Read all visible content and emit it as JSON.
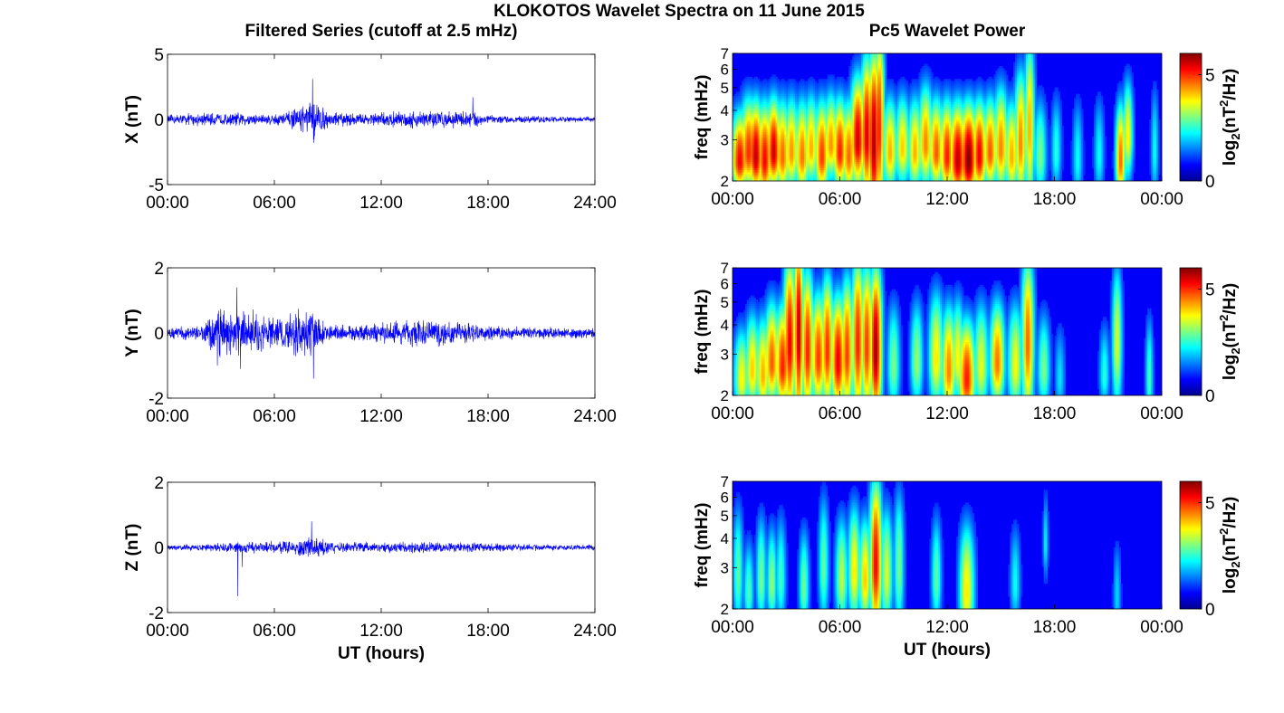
{
  "figure": {
    "title": "KLOKOTOS Wavelet Spectra on 11 June 2015",
    "left_column_title": "Filtered Series (cutoff at 2.5 mHz)",
    "right_column_title": "Pc5 Wavelet Power",
    "bottom_xlabel": "UT (hours)"
  },
  "chart_data": [
    {
      "type": "line",
      "panel": "X",
      "ylabel": "X (nT)",
      "xlabel": "",
      "xlim": [
        0,
        24
      ],
      "ylim": [
        -5,
        5
      ],
      "yticks": [
        -5,
        0,
        5
      ],
      "ytick_labels": [
        "-5",
        "0",
        "5"
      ],
      "xticks": [
        0,
        6,
        12,
        18,
        24
      ],
      "xtick_labels": [
        "00:00",
        "06:00",
        "12:00",
        "18:00",
        "24:00"
      ],
      "color": "#0000ff",
      "envelope": {
        "x": [
          0,
          1,
          2,
          3,
          4,
          5,
          6,
          7,
          7.8,
          8.2,
          9,
          10,
          11,
          12,
          13,
          14,
          15,
          16,
          17,
          17.6,
          18,
          19,
          20,
          21,
          22,
          23,
          24
        ],
        "amplitude": [
          0.4,
          0.5,
          0.6,
          0.5,
          0.6,
          0.5,
          0.5,
          0.8,
          1.2,
          1.8,
          0.7,
          0.6,
          0.5,
          0.6,
          0.7,
          0.8,
          0.8,
          0.7,
          0.8,
          0.6,
          0.4,
          0.3,
          0.3,
          0.3,
          0.25,
          0.25,
          0.25
        ]
      },
      "spikes": [
        {
          "t": 8.15,
          "y": 3.1
        },
        {
          "t": 8.2,
          "y": -1.8
        },
        {
          "t": 17.15,
          "y": 1.7
        },
        {
          "t": 7.6,
          "y": 1.0
        }
      ]
    },
    {
      "type": "line",
      "panel": "Y",
      "ylabel": "Y (nT)",
      "xlabel": "",
      "xlim": [
        0,
        24
      ],
      "ylim": [
        -2,
        2
      ],
      "yticks": [
        -2,
        0,
        2
      ],
      "ytick_labels": [
        "-2",
        "0",
        "2"
      ],
      "xticks": [
        0,
        6,
        12,
        18,
        24
      ],
      "xtick_labels": [
        "00:00",
        "06:00",
        "12:00",
        "18:00",
        "24:00"
      ],
      "color": "#0000ff",
      "envelope": {
        "x": [
          0,
          1,
          2,
          2.5,
          3,
          4,
          5,
          6,
          7,
          7.5,
          8,
          8.5,
          9,
          10,
          11,
          12,
          13,
          14,
          15,
          16,
          17,
          18,
          19,
          20,
          21,
          22,
          23,
          24
        ],
        "amplitude": [
          0.2,
          0.25,
          0.3,
          0.7,
          0.8,
          0.9,
          0.7,
          0.6,
          0.7,
          0.9,
          0.9,
          0.5,
          0.3,
          0.25,
          0.3,
          0.4,
          0.4,
          0.5,
          0.5,
          0.4,
          0.35,
          0.3,
          0.25,
          0.2,
          0.2,
          0.2,
          0.2,
          0.2
        ]
      },
      "spikes": [
        {
          "t": 3.9,
          "y": 1.4
        },
        {
          "t": 4.1,
          "y": -1.1
        },
        {
          "t": 7.5,
          "y": 1.45
        },
        {
          "t": 8.2,
          "y": -1.4
        },
        {
          "t": 2.8,
          "y": -1.0
        }
      ]
    },
    {
      "type": "line",
      "panel": "Z",
      "ylabel": "Z (nT)",
      "xlabel": "UT (hours)",
      "xlim": [
        0,
        24
      ],
      "ylim": [
        -2,
        2
      ],
      "yticks": [
        -2,
        0,
        2
      ],
      "ytick_labels": [
        "-2",
        "0",
        "2"
      ],
      "xticks": [
        0,
        6,
        12,
        18,
        24
      ],
      "xtick_labels": [
        "00:00",
        "06:00",
        "12:00",
        "18:00",
        "24:00"
      ],
      "color": "#0000ff",
      "envelope": {
        "x": [
          0,
          2,
          4,
          5,
          6,
          7,
          8,
          8.5,
          9,
          10,
          12,
          14,
          16,
          18,
          20,
          22,
          24
        ],
        "amplitude": [
          0.12,
          0.12,
          0.18,
          0.2,
          0.22,
          0.25,
          0.35,
          0.3,
          0.22,
          0.2,
          0.18,
          0.2,
          0.18,
          0.15,
          0.12,
          0.1,
          0.1
        ]
      },
      "spikes": [
        {
          "t": 3.95,
          "y": -1.5
        },
        {
          "t": 5.3,
          "y": -0.85
        },
        {
          "t": 8.1,
          "y": 0.8
        },
        {
          "t": 4.2,
          "y": -0.6
        }
      ]
    },
    {
      "type": "heatmap",
      "panel": "X",
      "ylabel": "freq (mHz)",
      "xlabel": "",
      "xlim": [
        0,
        24
      ],
      "ylim": [
        2,
        7
      ],
      "yscale": "log",
      "yticks": [
        2,
        3,
        4,
        5,
        6,
        7
      ],
      "ytick_labels": [
        "2",
        "3",
        "4",
        "5",
        "6",
        "7"
      ],
      "xticks": [
        0,
        6,
        12,
        18,
        24
      ],
      "xtick_labels": [
        "00:00",
        "06:00",
        "12:00",
        "18:00",
        "00:00"
      ],
      "colorbar": {
        "label": "log2(nT²/Hz)",
        "min": 0,
        "max": 6,
        "ticks": [
          0,
          5
        ],
        "tick_labels": [
          "0",
          "5"
        ]
      },
      "colormap": "jet",
      "bursts": [
        {
          "t": 0.4,
          "f": 2.4,
          "dt": 0.35,
          "v": 5.2,
          "df": 0.2
        },
        {
          "t": 0.9,
          "f": 2.6,
          "dt": 0.35,
          "v": 4.9,
          "df": 0.25
        },
        {
          "t": 1.3,
          "f": 2.5,
          "dt": 0.3,
          "v": 5.6,
          "df": 0.25
        },
        {
          "t": 1.8,
          "f": 2.4,
          "dt": 0.3,
          "v": 5.2,
          "df": 0.25
        },
        {
          "t": 2.3,
          "f": 2.6,
          "dt": 0.3,
          "v": 5.5,
          "df": 0.25
        },
        {
          "t": 2.8,
          "f": 2.5,
          "dt": 0.3,
          "v": 4.5,
          "df": 0.25
        },
        {
          "t": 3.3,
          "f": 2.6,
          "dt": 0.3,
          "v": 4.2,
          "df": 0.25
        },
        {
          "t": 3.9,
          "f": 2.5,
          "dt": 0.3,
          "v": 4.4,
          "df": 0.25
        },
        {
          "t": 4.4,
          "f": 2.7,
          "dt": 0.3,
          "v": 4.0,
          "df": 0.25
        },
        {
          "t": 5.0,
          "f": 2.5,
          "dt": 0.3,
          "v": 4.8,
          "df": 0.25
        },
        {
          "t": 5.5,
          "f": 2.8,
          "dt": 0.3,
          "v": 4.2,
          "df": 0.25
        },
        {
          "t": 6.0,
          "f": 2.6,
          "dt": 0.3,
          "v": 5.0,
          "df": 0.25
        },
        {
          "t": 6.5,
          "f": 2.5,
          "dt": 0.3,
          "v": 4.5,
          "df": 0.25
        },
        {
          "t": 7.0,
          "f": 2.9,
          "dt": 0.3,
          "v": 5.5,
          "df": 0.35
        },
        {
          "t": 7.5,
          "f": 3.0,
          "dt": 0.25,
          "v": 5.4,
          "df": 0.5
        },
        {
          "t": 7.9,
          "f": 2.8,
          "dt": 0.25,
          "v": 5.7,
          "df": 0.6
        },
        {
          "t": 8.2,
          "f": 3.2,
          "dt": 0.2,
          "v": 5.0,
          "df": 0.7
        },
        {
          "t": 8.8,
          "f": 2.6,
          "dt": 0.3,
          "v": 4.0,
          "df": 0.25
        },
        {
          "t": 9.5,
          "f": 2.7,
          "dt": 0.3,
          "v": 3.8,
          "df": 0.25
        },
        {
          "t": 10.2,
          "f": 2.6,
          "dt": 0.3,
          "v": 4.0,
          "df": 0.25
        },
        {
          "t": 10.8,
          "f": 2.8,
          "dt": 0.3,
          "v": 4.3,
          "df": 0.3
        },
        {
          "t": 11.4,
          "f": 2.6,
          "dt": 0.3,
          "v": 4.6,
          "df": 0.25
        },
        {
          "t": 12.0,
          "f": 2.5,
          "dt": 0.3,
          "v": 5.0,
          "df": 0.25
        },
        {
          "t": 12.6,
          "f": 2.4,
          "dt": 0.35,
          "v": 5.6,
          "df": 0.25
        },
        {
          "t": 13.2,
          "f": 2.4,
          "dt": 0.35,
          "v": 6.0,
          "df": 0.25
        },
        {
          "t": 13.8,
          "f": 2.5,
          "dt": 0.3,
          "v": 5.3,
          "df": 0.25
        },
        {
          "t": 14.4,
          "f": 2.6,
          "dt": 0.3,
          "v": 4.6,
          "df": 0.25
        },
        {
          "t": 15.0,
          "f": 2.7,
          "dt": 0.3,
          "v": 4.3,
          "df": 0.3
        },
        {
          "t": 15.6,
          "f": 2.5,
          "dt": 0.3,
          "v": 4.0,
          "df": 0.25
        },
        {
          "t": 16.1,
          "f": 2.8,
          "dt": 0.25,
          "v": 4.3,
          "df": 0.4
        },
        {
          "t": 16.6,
          "f": 3.2,
          "dt": 0.2,
          "v": 4.0,
          "df": 0.6
        },
        {
          "t": 17.2,
          "f": 2.5,
          "dt": 0.25,
          "v": 2.6,
          "df": 0.25
        },
        {
          "t": 18.1,
          "f": 2.6,
          "dt": 0.2,
          "v": 2.0,
          "df": 0.25
        },
        {
          "t": 19.3,
          "f": 2.4,
          "dt": 0.2,
          "v": 1.8,
          "df": 0.25
        },
        {
          "t": 20.5,
          "f": 2.5,
          "dt": 0.2,
          "v": 1.8,
          "df": 0.25
        },
        {
          "t": 21.7,
          "f": 2.4,
          "dt": 0.2,
          "v": 4.5,
          "df": 0.25
        },
        {
          "t": 22.1,
          "f": 3.0,
          "dt": 0.2,
          "v": 3.6,
          "df": 0.3
        },
        {
          "t": 23.6,
          "f": 2.6,
          "dt": 0.15,
          "v": 1.8,
          "df": 0.3
        }
      ]
    },
    {
      "type": "heatmap",
      "panel": "Y",
      "ylabel": "freq (mHz)",
      "xlabel": "",
      "xlim": [
        0,
        24
      ],
      "ylim": [
        2,
        7
      ],
      "yscale": "log",
      "yticks": [
        2,
        3,
        4,
        5,
        6,
        7
      ],
      "ytick_labels": [
        "2",
        "3",
        "4",
        "5",
        "6",
        "7"
      ],
      "xticks": [
        0,
        6,
        12,
        18,
        24
      ],
      "xtick_labels": [
        "00:00",
        "06:00",
        "12:00",
        "18:00",
        "00:00"
      ],
      "colorbar": {
        "label": "log2(nT²/Hz)",
        "min": 0,
        "max": 6,
        "ticks": [
          0,
          5
        ],
        "tick_labels": [
          "0",
          "5"
        ]
      },
      "colormap": "jet",
      "bursts": [
        {
          "t": 0.5,
          "f": 2.3,
          "dt": 0.3,
          "v": 3.5,
          "df": 0.2
        },
        {
          "t": 1.1,
          "f": 2.5,
          "dt": 0.3,
          "v": 3.8,
          "df": 0.25
        },
        {
          "t": 1.7,
          "f": 2.4,
          "dt": 0.3,
          "v": 4.0,
          "df": 0.25
        },
        {
          "t": 2.2,
          "f": 2.7,
          "dt": 0.3,
          "v": 4.6,
          "df": 0.3
        },
        {
          "t": 2.8,
          "f": 2.6,
          "dt": 0.3,
          "v": 5.0,
          "df": 0.3
        },
        {
          "t": 3.2,
          "f": 3.2,
          "dt": 0.25,
          "v": 5.3,
          "df": 0.6
        },
        {
          "t": 3.7,
          "f": 3.5,
          "dt": 0.2,
          "v": 5.6,
          "df": 0.8
        },
        {
          "t": 4.2,
          "f": 3.0,
          "dt": 0.25,
          "v": 5.0,
          "df": 0.5
        },
        {
          "t": 4.8,
          "f": 2.8,
          "dt": 0.3,
          "v": 4.8,
          "df": 0.35
        },
        {
          "t": 5.3,
          "f": 3.0,
          "dt": 0.25,
          "v": 4.9,
          "df": 0.45
        },
        {
          "t": 5.9,
          "f": 2.7,
          "dt": 0.3,
          "v": 5.3,
          "df": 0.35
        },
        {
          "t": 6.4,
          "f": 2.9,
          "dt": 0.25,
          "v": 4.8,
          "df": 0.45
        },
        {
          "t": 7.0,
          "f": 3.2,
          "dt": 0.25,
          "v": 5.0,
          "df": 0.6
        },
        {
          "t": 7.5,
          "f": 3.1,
          "dt": 0.25,
          "v": 4.8,
          "df": 0.55
        },
        {
          "t": 8.0,
          "f": 3.0,
          "dt": 0.25,
          "v": 5.8,
          "df": 0.55
        },
        {
          "t": 9.0,
          "f": 2.6,
          "dt": 0.25,
          "v": 2.6,
          "df": 0.3
        },
        {
          "t": 10.3,
          "f": 2.7,
          "dt": 0.25,
          "v": 2.8,
          "df": 0.3
        },
        {
          "t": 11.4,
          "f": 2.8,
          "dt": 0.3,
          "v": 3.6,
          "df": 0.35
        },
        {
          "t": 12.1,
          "f": 2.5,
          "dt": 0.3,
          "v": 4.3,
          "df": 0.3
        },
        {
          "t": 12.6,
          "f": 2.8,
          "dt": 0.25,
          "v": 3.5,
          "df": 0.3
        },
        {
          "t": 13.1,
          "f": 2.3,
          "dt": 0.35,
          "v": 5.0,
          "df": 0.25
        },
        {
          "t": 13.9,
          "f": 2.6,
          "dt": 0.3,
          "v": 3.3,
          "df": 0.3
        },
        {
          "t": 14.8,
          "f": 2.7,
          "dt": 0.3,
          "v": 4.4,
          "df": 0.3
        },
        {
          "t": 15.8,
          "f": 2.6,
          "dt": 0.3,
          "v": 3.4,
          "df": 0.3
        },
        {
          "t": 16.5,
          "f": 3.2,
          "dt": 0.25,
          "v": 4.5,
          "df": 0.6
        },
        {
          "t": 17.4,
          "f": 2.5,
          "dt": 0.25,
          "v": 2.6,
          "df": 0.25
        },
        {
          "t": 18.3,
          "f": 2.3,
          "dt": 0.2,
          "v": 1.6,
          "df": 0.2
        },
        {
          "t": 20.8,
          "f": 2.4,
          "dt": 0.2,
          "v": 2.0,
          "df": 0.2
        },
        {
          "t": 21.5,
          "f": 3.2,
          "dt": 0.2,
          "v": 3.2,
          "df": 0.5
        },
        {
          "t": 23.3,
          "f": 2.3,
          "dt": 0.15,
          "v": 2.2,
          "df": 0.25
        }
      ]
    },
    {
      "type": "heatmap",
      "panel": "Z",
      "ylabel": "freq (mHz)",
      "xlabel": "UT (hours)",
      "xlim": [
        0,
        24
      ],
      "ylim": [
        2,
        7
      ],
      "yscale": "log",
      "yticks": [
        2,
        3,
        4,
        5,
        6,
        7
      ],
      "ytick_labels": [
        "2",
        "3",
        "4",
        "5",
        "6",
        "7"
      ],
      "xticks": [
        0,
        6,
        12,
        18,
        24
      ],
      "xtick_labels": [
        "00:00",
        "06:00",
        "12:00",
        "18:00",
        "00:00"
      ],
      "colorbar": {
        "label": "log2(nT²/Hz)",
        "min": 0,
        "max": 6,
        "ticks": [
          0,
          5
        ],
        "tick_labels": [
          "0",
          "5"
        ]
      },
      "colormap": "jet",
      "bursts": [
        {
          "t": 0.3,
          "f": 2.7,
          "dt": 0.2,
          "v": 2.4,
          "df": 0.35
        },
        {
          "t": 0.9,
          "f": 2.3,
          "dt": 0.2,
          "v": 2.3,
          "df": 0.2
        },
        {
          "t": 1.6,
          "f": 2.6,
          "dt": 0.2,
          "v": 2.6,
          "df": 0.3
        },
        {
          "t": 2.2,
          "f": 2.5,
          "dt": 0.2,
          "v": 2.8,
          "df": 0.25
        },
        {
          "t": 2.7,
          "f": 2.6,
          "dt": 0.2,
          "v": 2.2,
          "df": 0.3
        },
        {
          "t": 4.0,
          "f": 2.4,
          "dt": 0.2,
          "v": 2.5,
          "df": 0.25
        },
        {
          "t": 5.1,
          "f": 2.9,
          "dt": 0.2,
          "v": 2.4,
          "df": 0.4
        },
        {
          "t": 6.1,
          "f": 2.6,
          "dt": 0.25,
          "v": 3.0,
          "df": 0.3
        },
        {
          "t": 6.8,
          "f": 2.8,
          "dt": 0.25,
          "v": 3.6,
          "df": 0.35
        },
        {
          "t": 7.4,
          "f": 2.6,
          "dt": 0.25,
          "v": 3.8,
          "df": 0.3
        },
        {
          "t": 8.0,
          "f": 3.0,
          "dt": 0.25,
          "v": 5.2,
          "df": 0.55
        },
        {
          "t": 8.6,
          "f": 2.7,
          "dt": 0.25,
          "v": 3.2,
          "df": 0.35
        },
        {
          "t": 9.3,
          "f": 2.9,
          "dt": 0.2,
          "v": 2.6,
          "df": 0.45
        },
        {
          "t": 11.4,
          "f": 2.6,
          "dt": 0.2,
          "v": 2.4,
          "df": 0.3
        },
        {
          "t": 13.1,
          "f": 2.3,
          "dt": 0.3,
          "v": 3.6,
          "df": 0.3
        },
        {
          "t": 15.8,
          "f": 2.5,
          "dt": 0.2,
          "v": 1.8,
          "df": 0.25
        },
        {
          "t": 17.5,
          "f": 3.7,
          "dt": 0.1,
          "v": 1.8,
          "df": 0.3
        },
        {
          "t": 21.5,
          "f": 2.2,
          "dt": 0.15,
          "v": 1.5,
          "df": 0.2
        }
      ]
    }
  ]
}
